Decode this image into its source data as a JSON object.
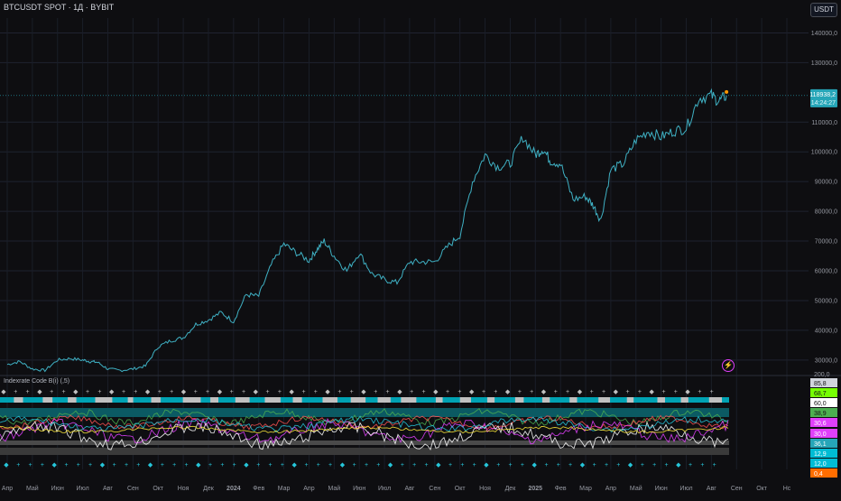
{
  "header": {
    "title": "BTCUSDT SPOT · 1Д · BYBIT",
    "currency": "USDT"
  },
  "indicator": {
    "title": "Indexrate Code B(i) (,5)"
  },
  "price_badge": {
    "price": "118938,2",
    "timer": "14:24:27",
    "color": "#26a6b8"
  },
  "icons": {
    "alert": "lightning-icon"
  },
  "colors": {
    "price_line": "#3fb1c4",
    "background": "#0e0e11",
    "teal": "#00a2b3",
    "gray": "#c0c0c0"
  },
  "chart_data": {
    "type": "line",
    "title": "BTCUSDT SPOT · 1Д · BYBIT",
    "x_tick_labels": [
      "Апр",
      "Май",
      "Июн",
      "Июл",
      "Авг",
      "Сен",
      "Окт",
      "Ноя",
      "Дек",
      "2024",
      "Фев",
      "Мар",
      "Апр",
      "Май",
      "Июн",
      "Июл",
      "Авг",
      "Сен",
      "Окт",
      "Ноя",
      "Дек",
      "2025",
      "Фев",
      "Мар",
      "Апр",
      "Май",
      "Июн",
      "Июл",
      "Авг",
      "Сен",
      "Окт",
      "Нс"
    ],
    "y_tick_labels": [
      "140000,0",
      "130000,0",
      "110000,0",
      "100000,0",
      "90000,0",
      "80000,0",
      "70000,0",
      "60000,0",
      "50000,0",
      "40000,0",
      "30000,0"
    ],
    "ylim": [
      26000,
      145000
    ],
    "x_unit": "month index (Apr 2023 = 0)",
    "series": [
      {
        "x": [
          0,
          0.5,
          1,
          1.5,
          2,
          2.5,
          3,
          3.3,
          3.6,
          4,
          4.5,
          5,
          5.5,
          6,
          6.5,
          7,
          7.5,
          8,
          8.5,
          9,
          9.5,
          10,
          10.5,
          11,
          11.5,
          12,
          12.3,
          12.6,
          13,
          13.5,
          14,
          14.5,
          15,
          15.5,
          16,
          16.5,
          17,
          17.5,
          18,
          18.5,
          19,
          19.5,
          20,
          20.5,
          21,
          21.3,
          21.6,
          22,
          22.5,
          23,
          23.3,
          23.6,
          24,
          24.5,
          25,
          25.5,
          26,
          26.5,
          27,
          27.5,
          28,
          28.3,
          28.6
        ],
        "values": [
          28500,
          29500,
          27000,
          26500,
          30000,
          30500,
          30000,
          29500,
          29200,
          27000,
          26500,
          27000,
          28000,
          34500,
          36500,
          37500,
          42000,
          43500,
          46000,
          43000,
          52000,
          51500,
          62000,
          69000,
          66000,
          63500,
          67000,
          70000,
          65000,
          60000,
          66000,
          59000,
          57000,
          56000,
          63000,
          63000,
          63000,
          68000,
          72000,
          90000,
          99000,
          95000,
          96000,
          105000,
          99000,
          101000,
          97000,
          96000,
          84000,
          85000,
          82000,
          77000,
          94000,
          96000,
          104000,
          107000,
          105000,
          107000,
          108000,
          118000,
          119000,
          117000,
          118938
        ]
      }
    ],
    "indicator_levels": [
      "85,8",
      "68,7",
      "60,0",
      "38,9",
      "30,6",
      "30,0",
      "36,1",
      "12,9",
      "12,0",
      "0,4",
      "200,0"
    ]
  }
}
